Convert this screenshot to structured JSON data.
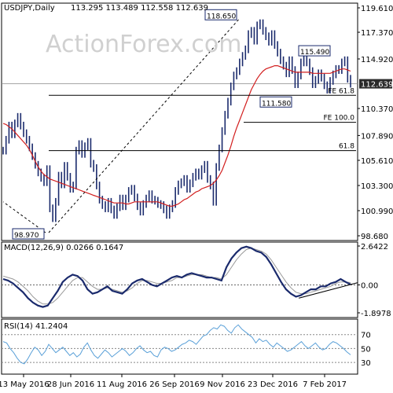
{
  "chart_data": [
    {
      "type": "line",
      "panel": "price",
      "title": "USDJPY,Daily",
      "ohlc": "113.295 113.489 112.558 112.639",
      "watermark": "ActionForex.com",
      "last_price": "112.639",
      "y_ticks": [
        "119.610",
        "117.370",
        "114.920",
        "112.639",
        "110.370",
        "107.890",
        "105.610",
        "103.300",
        "100.990",
        "98.680"
      ],
      "y_range": [
        98.68,
        119.61
      ],
      "x_ticks": [
        "13 May 2016",
        "28 Jun 2016",
        "11 Aug 2016",
        "26 Sep 2016",
        "9 Nov 2016",
        "23 Dec 2016",
        "7 Feb 2017"
      ],
      "annotations": [
        {
          "text": "118.650",
          "value": 118.65
        },
        {
          "text": "115.490",
          "value": 115.49
        },
        {
          "text": "111.580",
          "value": 111.58
        },
        {
          "text": "98.970",
          "value": 98.97
        }
      ],
      "levels": [
        {
          "label": "FE 61.8",
          "value": 111.58
        },
        {
          "label": "FE 100.0",
          "value": 109.1
        },
        {
          "label": "61.8",
          "value": 106.5
        }
      ],
      "close_series": [
        106.5,
        107.5,
        108.8,
        108.0,
        109.0,
        109.6,
        108.8,
        108.1,
        107.5,
        106.8,
        106.0,
        105.2,
        104.5,
        104.0,
        103.6,
        104.8,
        101.2,
        100.3,
        101.8,
        104.2,
        103.4,
        105.1,
        104.1,
        103.0,
        103.3,
        106.5,
        107.1,
        106.2,
        106.9,
        107.3,
        105.3,
        104.9,
        103.3,
        102.0,
        101.5,
        101.2,
        101.8,
        101.1,
        100.6,
        101.3,
        102.1,
        101.4,
        102.1,
        102.8,
        103.0,
        102.2,
        101.4,
        100.9,
        101.6,
        102.1,
        102.5,
        102.0,
        101.9,
        101.6,
        101.5,
        101.1,
        100.6,
        101.2,
        101.6,
        102.8,
        103.4,
        103.6,
        103.9,
        103.0,
        103.5,
        104.1,
        104.5,
        104.2,
        104.8,
        105.2,
        103.9,
        103.3,
        101.8,
        105.0,
        106.7,
        108.3,
        109.8,
        111.0,
        112.4,
        113.4,
        113.8,
        114.6,
        115.2,
        115.8,
        117.2,
        117.5,
        116.6,
        118.0,
        118.2,
        117.5,
        117.0,
        116.5,
        117.2,
        116.2,
        115.5,
        114.8,
        114.3,
        113.6,
        114.8,
        113.9,
        112.6,
        113.4,
        114.6,
        115.0,
        114.6,
        113.8,
        112.6,
        113.0,
        113.6,
        113.2,
        112.5,
        112.1,
        112.9,
        113.5,
        114.0,
        113.9,
        114.6,
        114.8,
        113.1,
        112.64
      ],
      "ma_series": [
        109.0,
        108.9,
        108.7,
        108.5,
        108.2,
        107.9,
        107.6,
        107.3,
        107.0,
        106.6,
        106.1,
        105.5,
        105.0,
        104.6,
        104.3,
        104.1,
        103.9,
        103.8,
        103.7,
        103.6,
        103.5,
        103.4,
        103.3,
        103.2,
        103.1,
        103.0,
        102.9,
        102.8,
        102.7,
        102.6,
        102.5,
        102.4,
        102.3,
        102.2,
        102.1,
        102.0,
        101.9,
        101.8,
        101.7,
        101.7,
        101.7,
        101.7,
        101.6,
        101.6,
        101.7,
        101.8,
        101.8,
        101.8,
        101.8,
        101.8,
        101.8,
        101.8,
        101.8,
        101.8,
        101.7,
        101.6,
        101.5,
        101.4,
        101.4,
        101.5,
        101.6,
        101.8,
        102.0,
        102.1,
        102.3,
        102.5,
        102.7,
        102.8,
        103.0,
        103.1,
        103.2,
        103.3,
        103.5,
        103.8,
        104.2,
        104.7,
        105.4,
        106.1,
        106.9,
        107.8,
        108.6,
        109.3,
        110.0,
        110.7,
        111.4,
        112.1,
        112.6,
        113.1,
        113.5,
        113.8,
        114.0,
        114.1,
        114.2,
        114.3,
        114.3,
        114.2,
        114.1,
        114.0,
        113.9,
        113.8,
        113.7,
        113.7,
        113.7,
        113.7,
        113.7,
        113.7,
        113.6,
        113.6,
        113.6,
        113.6,
        113.6,
        113.6,
        113.6,
        113.7,
        113.8,
        113.9,
        114.0,
        114.0,
        113.9,
        113.8
      ]
    },
    {
      "type": "line",
      "panel": "macd",
      "title": "MACD(12,26,9) 0.0266 0.1647",
      "y_ticks": [
        "2.6422",
        "0.00",
        "-1.8978"
      ],
      "y_range": [
        -1.8978,
        2.6422
      ],
      "macd_series": [
        0.4,
        0.3,
        0.1,
        -0.2,
        -0.5,
        -0.9,
        -1.2,
        -1.4,
        -1.5,
        -1.4,
        -0.9,
        -0.4,
        0.2,
        0.5,
        0.7,
        0.6,
        0.3,
        -0.3,
        -0.6,
        -0.5,
        -0.3,
        -0.1,
        -0.4,
        -0.5,
        -0.6,
        -0.3,
        0.1,
        0.3,
        0.4,
        0.2,
        0.0,
        -0.1,
        0.1,
        0.3,
        0.5,
        0.6,
        0.5,
        0.7,
        0.8,
        0.7,
        0.6,
        0.5,
        0.5,
        0.4,
        0.3,
        1.2,
        1.8,
        2.2,
        2.5,
        2.6,
        2.5,
        2.3,
        2.2,
        1.9,
        1.4,
        0.8,
        0.2,
        -0.3,
        -0.6,
        -0.8,
        -0.7,
        -0.5,
        -0.3,
        -0.3,
        -0.1,
        -0.1,
        0.1,
        0.2,
        0.4,
        0.2,
        0.03
      ],
      "signal_series": [
        0.6,
        0.5,
        0.4,
        0.2,
        -0.1,
        -0.4,
        -0.8,
        -1.1,
        -1.3,
        -1.3,
        -1.2,
        -0.9,
        -0.5,
        -0.1,
        0.3,
        0.5,
        0.5,
        0.2,
        -0.1,
        -0.3,
        -0.3,
        -0.2,
        -0.3,
        -0.4,
        -0.5,
        -0.4,
        -0.2,
        0.1,
        0.3,
        0.3,
        0.2,
        0.1,
        0.1,
        0.2,
        0.3,
        0.5,
        0.5,
        0.6,
        0.7,
        0.7,
        0.7,
        0.6,
        0.5,
        0.5,
        0.4,
        0.7,
        1.2,
        1.7,
        2.1,
        2.4,
        2.5,
        2.4,
        2.3,
        2.1,
        1.7,
        1.2,
        0.7,
        0.2,
        -0.2,
        -0.5,
        -0.6,
        -0.6,
        -0.5,
        -0.4,
        -0.3,
        -0.2,
        -0.1,
        0.1,
        0.2,
        0.2,
        0.16
      ]
    },
    {
      "type": "line",
      "panel": "rsi",
      "title": "RSI(14) 41.2404",
      "y_ticks": [
        "70",
        "50",
        "30"
      ],
      "y_range": [
        20,
        90
      ],
      "rsi_series": [
        60,
        58,
        50,
        44,
        36,
        30,
        28,
        35,
        44,
        52,
        48,
        40,
        46,
        56,
        50,
        44,
        48,
        52,
        46,
        40,
        44,
        38,
        42,
        52,
        58,
        48,
        40,
        36,
        42,
        48,
        44,
        38,
        42,
        46,
        50,
        46,
        40,
        44,
        50,
        54,
        48,
        44,
        46,
        40,
        38,
        48,
        52,
        50,
        46,
        48,
        52,
        56,
        58,
        62,
        60,
        56,
        62,
        68,
        70,
        76,
        80,
        78,
        84,
        82,
        76,
        72,
        80,
        84,
        78,
        74,
        70,
        66,
        58,
        64,
        60,
        62,
        56,
        52,
        58,
        54,
        50,
        46,
        48,
        52,
        56,
        60,
        54,
        50,
        54,
        58,
        52,
        48,
        50,
        56,
        60,
        58,
        54,
        50,
        45,
        41
      ]
    }
  ]
}
